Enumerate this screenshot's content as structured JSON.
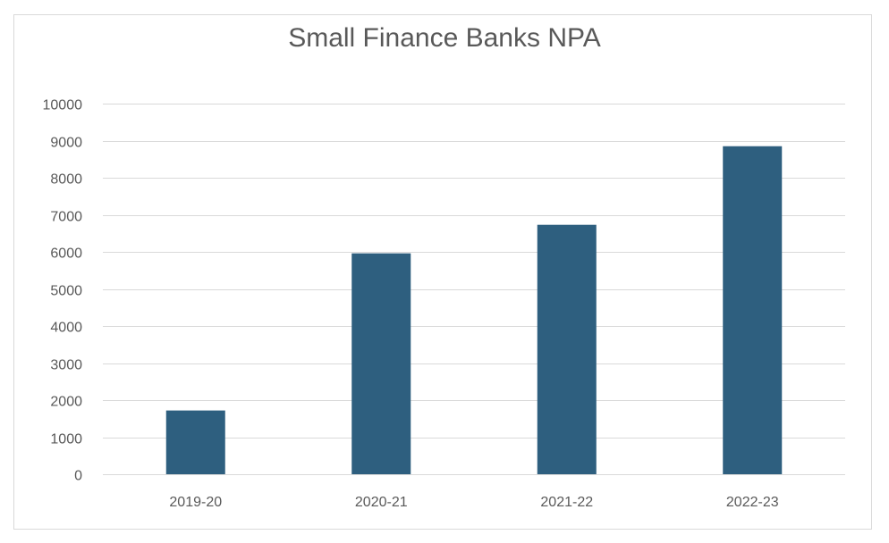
{
  "chart_data": {
    "type": "bar",
    "title": "Small Finance Banks NPA",
    "categories": [
      "2019-20",
      "2020-21",
      "2021-22",
      "2022-23"
    ],
    "values": [
      1720,
      5960,
      6730,
      8850
    ],
    "xlabel": "",
    "ylabel": "",
    "ylim": [
      0,
      10000
    ],
    "yticks": [
      "0",
      "1000",
      "2000",
      "3000",
      "4000",
      "5000",
      "6000",
      "7000",
      "8000",
      "9000",
      "10000"
    ],
    "grid": true,
    "legend": "none",
    "bar_color": "#2e5f7f"
  }
}
